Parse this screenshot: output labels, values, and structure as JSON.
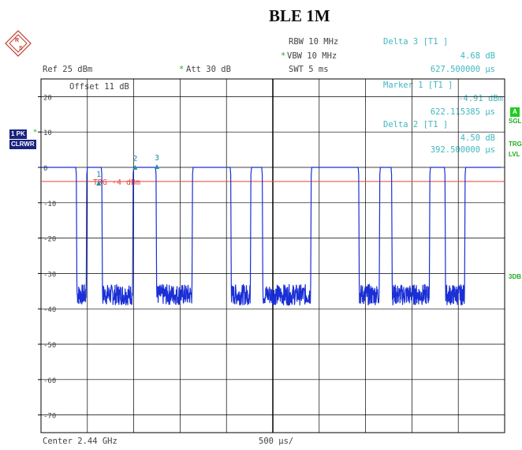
{
  "title": "BLE 1M",
  "header": {
    "rbw": "RBW 10 MHz",
    "vbw": "VBW 10 MHz",
    "swt": "SWT 5 ms",
    "ref": "Ref  25 dBm",
    "att": "Att   30 dB",
    "offset": "Offset   11 dB",
    "star": "*"
  },
  "markers_info": {
    "delta3_label": "Delta 3 [T1 ]",
    "delta3_db": "4.68 dB",
    "delta3_time": "627.500000 µs",
    "marker1_label": "Marker 1 [T1 ]",
    "marker1_dbm": "-4.91 dBm",
    "marker1_time": "622.115385 µs",
    "delta2_label": "Delta 2 [T1 ]",
    "delta2_db": "4.50 dB",
    "delta2_time": "392.500000 µs"
  },
  "left_badges": {
    "trace": "1 PK",
    "mode": "CLRWR"
  },
  "right_badges": {
    "a": "A",
    "sgl": "SGL",
    "trg": "TRG",
    "lvl": "LVL",
    "db3": "3DB"
  },
  "footer": {
    "center": "Center 2.44 GHz",
    "span": "500 µs/"
  },
  "trigger_label": "TRG -4 dBm",
  "colors": {
    "trace": "#1a2fd6",
    "trigger_line": "#e8453c",
    "grid": "#000000",
    "marker": "#1f8fa0",
    "badge_bg": "#1a237e",
    "green_badge": "#22cc22"
  },
  "chart_data": {
    "type": "line",
    "title": "BLE 1M",
    "xlabel": "Center 2.44 GHz",
    "x_div": "500 µs/",
    "x_unit": "µs",
    "xlim": [
      0,
      5000
    ],
    "ylim": [
      -75,
      25
    ],
    "y_ticks": [
      20,
      10,
      0,
      -10,
      -20,
      -30,
      -40,
      -50,
      -60,
      -70
    ],
    "y_tick_labels": [
      "20",
      "10",
      "0",
      "-10",
      "-20",
      "-30",
      "-40",
      "-50",
      "-60",
      "-70"
    ],
    "grid": true,
    "trigger_level_dbm": -4,
    "high_level_dbm": 0,
    "low_level_dbm": -36,
    "bursts_us": [
      [
        0,
        375
      ],
      [
        500,
        650
      ],
      [
        1000,
        1235
      ],
      [
        1640,
        2040
      ],
      [
        2270,
        2380
      ],
      [
        2920,
        3420
      ],
      [
        3660,
        3775
      ],
      [
        4200,
        4350
      ],
      [
        4580,
        4960
      ]
    ],
    "markers": [
      {
        "label": "1",
        "time_us": 622.115385,
        "level_dbm": -4.91
      },
      {
        "label": "2",
        "time_us": 1014.615385,
        "level_dbm": -0.41
      },
      {
        "label": "3",
        "time_us": 1249.615385,
        "level_dbm": -0.23
      }
    ]
  }
}
